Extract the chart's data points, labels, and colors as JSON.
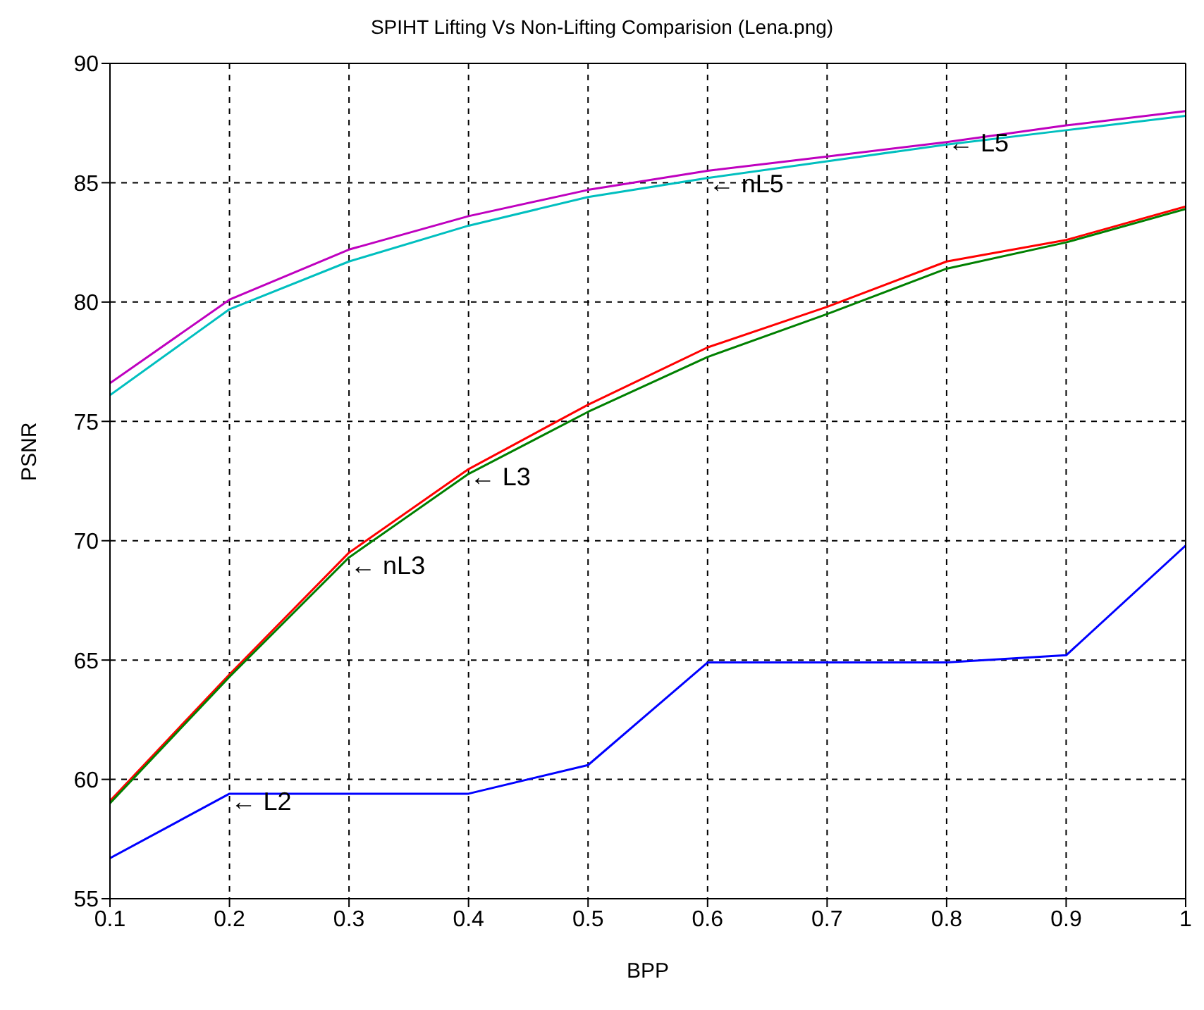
{
  "chart_data": {
    "type": "line",
    "title": "SPIHT Lifting Vs Non-Lifting Comparision (Lena.png)",
    "xlabel": "BPP",
    "ylabel": "PSNR",
    "x": [
      0.1,
      0.2,
      0.3,
      0.4,
      0.5,
      0.6,
      0.7,
      0.8,
      0.9,
      1
    ],
    "series": [
      {
        "color": "#bf00bf",
        "values": [
          76.6,
          80.1,
          82.2,
          83.6,
          84.7,
          85.5,
          86.1,
          86.7,
          87.4,
          88.0
        ]
      },
      {
        "color": "#00bfbf",
        "values": [
          76.1,
          79.7,
          81.7,
          83.2,
          84.4,
          85.2,
          85.9,
          86.6,
          87.2,
          87.8
        ]
      },
      {
        "color": "#ff0000",
        "values": [
          59.1,
          64.4,
          69.5,
          73.0,
          75.7,
          78.1,
          79.8,
          81.7,
          82.6,
          84.0
        ]
      },
      {
        "color": "#008000",
        "values": [
          59.0,
          64.3,
          69.3,
          72.8,
          75.4,
          77.7,
          79.5,
          81.4,
          82.5,
          83.9
        ]
      },
      {
        "color": "#0000ff",
        "values": [
          56.7,
          59.4,
          59.4,
          59.4,
          60.6,
          64.9,
          64.9,
          64.9,
          65.2,
          69.8
        ]
      }
    ],
    "annotations": [
      {
        "text": "← L5",
        "x": 0.8,
        "y": 86.9
      },
      {
        "text": "← nL5",
        "x": 0.6,
        "y": 85.2
      },
      {
        "text": "← L3",
        "x": 0.4,
        "y": 72.9
      },
      {
        "text": "← nL3",
        "x": 0.3,
        "y": 69.2
      },
      {
        "text": "← L2",
        "x": 0.2,
        "y": 59.3
      }
    ],
    "xlim": [
      0.1,
      1
    ],
    "xticks": [
      0.1,
      0.2,
      0.3,
      0.4,
      0.5,
      0.6,
      0.7,
      0.8,
      0.9,
      1
    ],
    "ylim": [
      55,
      90
    ],
    "yticks": [
      55,
      60,
      65,
      70,
      75,
      80,
      85,
      90
    ],
    "grid": true,
    "marker": "none",
    "line_style": "solid"
  }
}
